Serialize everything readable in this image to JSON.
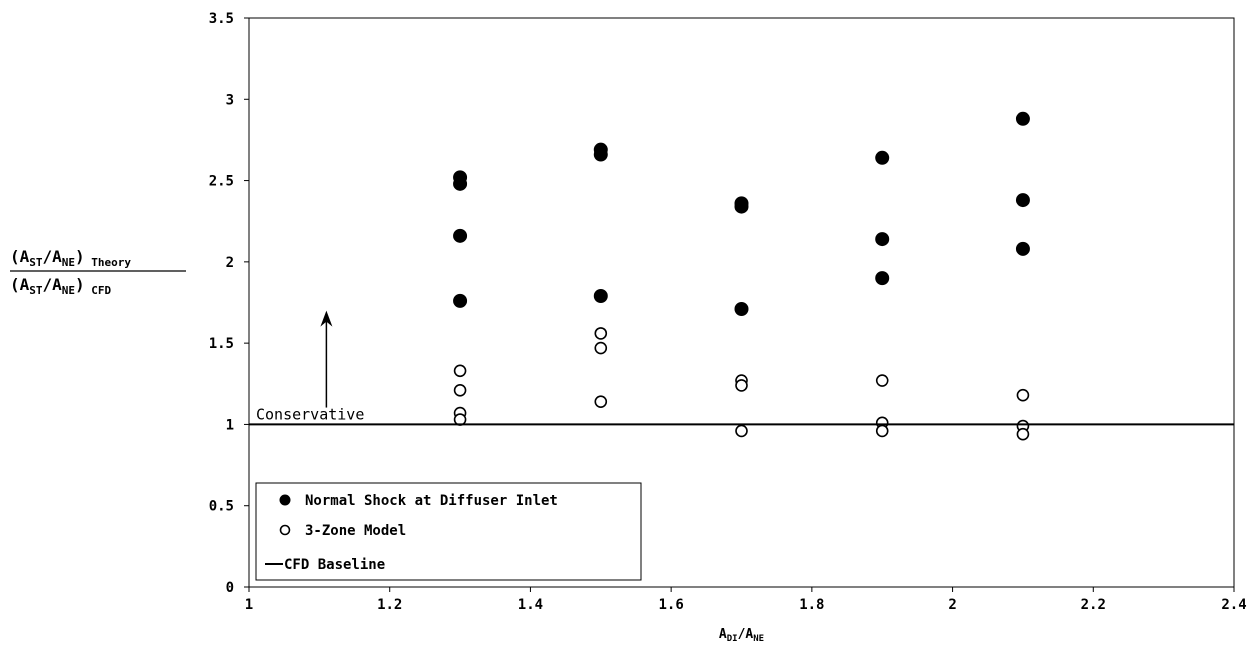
{
  "chart_data": {
    "type": "scatter",
    "xlabel": {
      "base1": "A",
      "sub1": "DI",
      "slash": "/",
      "base2": "A",
      "sub2": "NE"
    },
    "ylabel": {
      "numerator": {
        "open": "(A",
        "sub1": "ST",
        "mid": "/A",
        "sub2": "NE",
        "close": ")",
        "suffix": "Theory"
      },
      "denominator": {
        "open": "(A",
        "sub1": "ST",
        "mid": "/A",
        "sub2": "NE",
        "close": ")",
        "suffix": "CFD"
      }
    },
    "xlim": [
      1,
      2.4
    ],
    "ylim": [
      0,
      3.5
    ],
    "x_ticks": [
      "1",
      "1.2",
      "1.4",
      "1.6",
      "1.8",
      "2",
      "2.2",
      "2.4"
    ],
    "y_ticks": [
      "0",
      "0.5",
      "1",
      "1.5",
      "2",
      "2.5",
      "3",
      "3.5"
    ],
    "grid": false,
    "legend_position": "bottom-left",
    "series": [
      {
        "name": "Normal Shock at Diffuser Inlet",
        "marker": "filled-circle",
        "points": [
          [
            1.3,
            2.52
          ],
          [
            1.3,
            2.48
          ],
          [
            1.3,
            2.16
          ],
          [
            1.3,
            1.76
          ],
          [
            1.5,
            2.69
          ],
          [
            1.5,
            2.66
          ],
          [
            1.5,
            1.79
          ],
          [
            1.7,
            2.36
          ],
          [
            1.7,
            2.34
          ],
          [
            1.7,
            1.71
          ],
          [
            1.9,
            2.64
          ],
          [
            1.9,
            2.14
          ],
          [
            1.9,
            1.9
          ],
          [
            2.1,
            2.88
          ],
          [
            2.1,
            2.38
          ],
          [
            2.1,
            2.08
          ]
        ]
      },
      {
        "name": "3-Zone Model",
        "marker": "open-circle",
        "points": [
          [
            1.3,
            1.33
          ],
          [
            1.3,
            1.21
          ],
          [
            1.3,
            1.07
          ],
          [
            1.3,
            1.03
          ],
          [
            1.5,
            1.56
          ],
          [
            1.5,
            1.47
          ],
          [
            1.5,
            1.14
          ],
          [
            1.7,
            1.27
          ],
          [
            1.7,
            1.24
          ],
          [
            1.7,
            0.96
          ],
          [
            1.9,
            1.27
          ],
          [
            1.9,
            1.01
          ],
          [
            1.9,
            0.96
          ],
          [
            2.1,
            1.18
          ],
          [
            2.1,
            0.99
          ],
          [
            2.1,
            0.94
          ]
        ]
      },
      {
        "name": "CFD Baseline",
        "marker": "line",
        "y": 1.0
      }
    ],
    "annotation": {
      "text": "Conservative",
      "arrow_x": 1.11,
      "arrow_y_from": 1.03,
      "arrow_y_to": 1.7
    }
  }
}
